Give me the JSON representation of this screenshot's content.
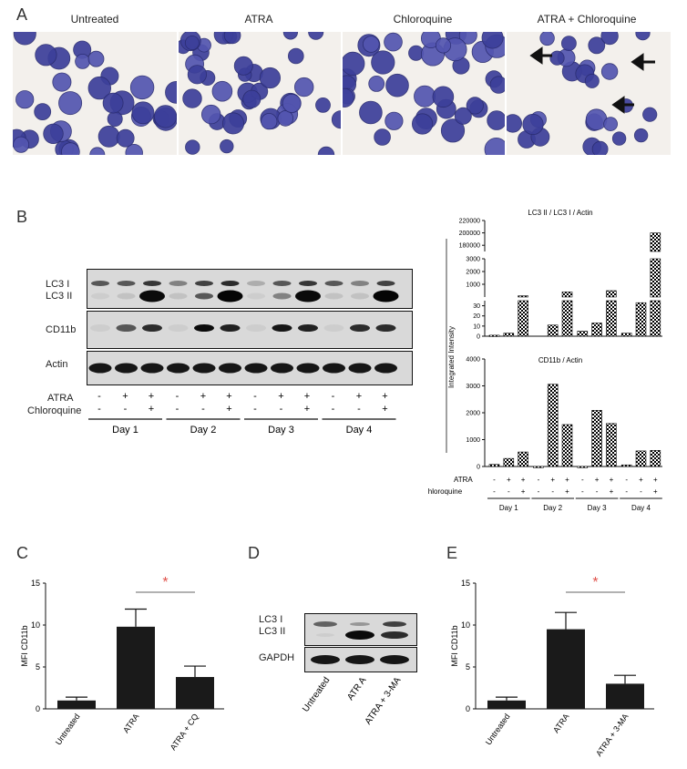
{
  "panel_a": {
    "letter": "A",
    "conditions": [
      "Untreated",
      "ATRA",
      "Chloroquine",
      "ATRA + Chloroquine"
    ]
  },
  "panel_b": {
    "letter": "B",
    "blot_labels": {
      "lc3_i": "LC3 I",
      "lc3_ii": "LC3 II",
      "cd11b": "CD11b",
      "actin": "Actin"
    },
    "treatment_labels": {
      "atra": "ATRA",
      "chloroquine": "Chloroquine"
    },
    "atra_signs": [
      "-",
      "+",
      "+",
      "-",
      "+",
      "+",
      "-",
      "+",
      "+",
      "-",
      "+",
      "+"
    ],
    "cq_signs": [
      "-",
      "-",
      "+",
      "-",
      "-",
      "+",
      "-",
      "-",
      "+",
      "-",
      "-",
      "+"
    ],
    "days": [
      "Day 1",
      "Day 2",
      "Day 3",
      "Day 4"
    ]
  },
  "panel_c": {
    "letter": "C"
  },
  "panel_d": {
    "letter": "D",
    "blot_labels": {
      "lc3_i": "LC3 I",
      "lc3_ii": "LC3 II",
      "gapdh": "GAPDH"
    },
    "lanes": [
      "Untreated",
      "ATR A",
      "ATRA + 3-MA"
    ]
  },
  "panel_e": {
    "letter": "E"
  },
  "colors": {
    "bar": "#1a1a1a",
    "significance": "#e0524b"
  },
  "chart_data": [
    {
      "type": "bar",
      "title": "LC3 II / LC3 I / Actin",
      "ylabel": "Integrated Intensity",
      "scale": "broken",
      "y_segments": [
        {
          "ylim": [
            0,
            35
          ],
          "ticks": [
            0,
            10,
            20,
            30
          ]
        },
        {
          "ylim": [
            0,
            3000
          ],
          "ticks": [
            1000,
            2000,
            3000
          ]
        },
        {
          "ylim": [
            170000,
            220000
          ],
          "ticks": [
            180000,
            200000,
            220000
          ]
        }
      ],
      "categories": [
        "Day1 -/-",
        "Day1 +/-",
        "Day1 +/+",
        "Day2 -/-",
        "Day2 +/-",
        "Day2 +/+",
        "Day3 -/-",
        "Day3 +/-",
        "Day3 +/+",
        "Day4 -/-",
        "Day4 +/-",
        "Day4 +/+"
      ],
      "values": [
        1,
        3,
        100,
        0,
        11,
        400,
        5,
        13,
        500,
        3,
        33,
        200000
      ]
    },
    {
      "type": "bar",
      "title": "CD11b / Actin",
      "ylabel": "Integrated Intensity",
      "ylim": [
        0,
        4000
      ],
      "ticks": [
        0,
        1000,
        2000,
        3000,
        4000
      ],
      "categories": [
        "Day1 -/-",
        "Day1 +/-",
        "Day1 +/+",
        "Day2 -/-",
        "Day2 +/-",
        "Day2 +/+",
        "Day3 -/-",
        "Day3 +/-",
        "Day3 +/+",
        "Day4 -/-",
        "Day4 +/-",
        "Day4 +/+"
      ],
      "values": [
        80,
        300,
        540,
        5,
        3060,
        1560,
        5,
        2090,
        1600,
        60,
        580,
        600
      ],
      "atra_signs": [
        "-",
        "+",
        "+",
        "-",
        "+",
        "+",
        "-",
        "+",
        "+",
        "-",
        "+",
        "+"
      ],
      "cq_signs": [
        "-",
        "-",
        "+",
        "-",
        "-",
        "+",
        "-",
        "-",
        "+",
        "-",
        "-",
        "+"
      ],
      "atra_label": "ATRA",
      "cq_label": "Chloroquine",
      "days": [
        "Day 1",
        "Day 2",
        "Day 3",
        "Day 4"
      ]
    },
    {
      "type": "bar",
      "ylabel": "MFI CD11b",
      "ylim": [
        0,
        15
      ],
      "ticks": [
        0,
        5,
        10,
        15
      ],
      "categories": [
        "Untreated",
        "ATRA",
        "ATRA + CQ"
      ],
      "values": [
        1.0,
        9.8,
        3.8
      ],
      "errors": [
        0.4,
        2.1,
        1.3
      ],
      "significance": {
        "between": [
          1,
          2
        ],
        "label": "*"
      }
    },
    {
      "type": "bar",
      "ylabel": "MFI CD11b",
      "ylim": [
        0,
        15
      ],
      "ticks": [
        0,
        5,
        10,
        15
      ],
      "categories": [
        "Untreated",
        "ATRA",
        "ATRA + 3-MA"
      ],
      "values": [
        1.0,
        9.5,
        3.0
      ],
      "errors": [
        0.4,
        2.0,
        1.0
      ],
      "significance": {
        "between": [
          1,
          2
        ],
        "label": "*"
      }
    }
  ]
}
